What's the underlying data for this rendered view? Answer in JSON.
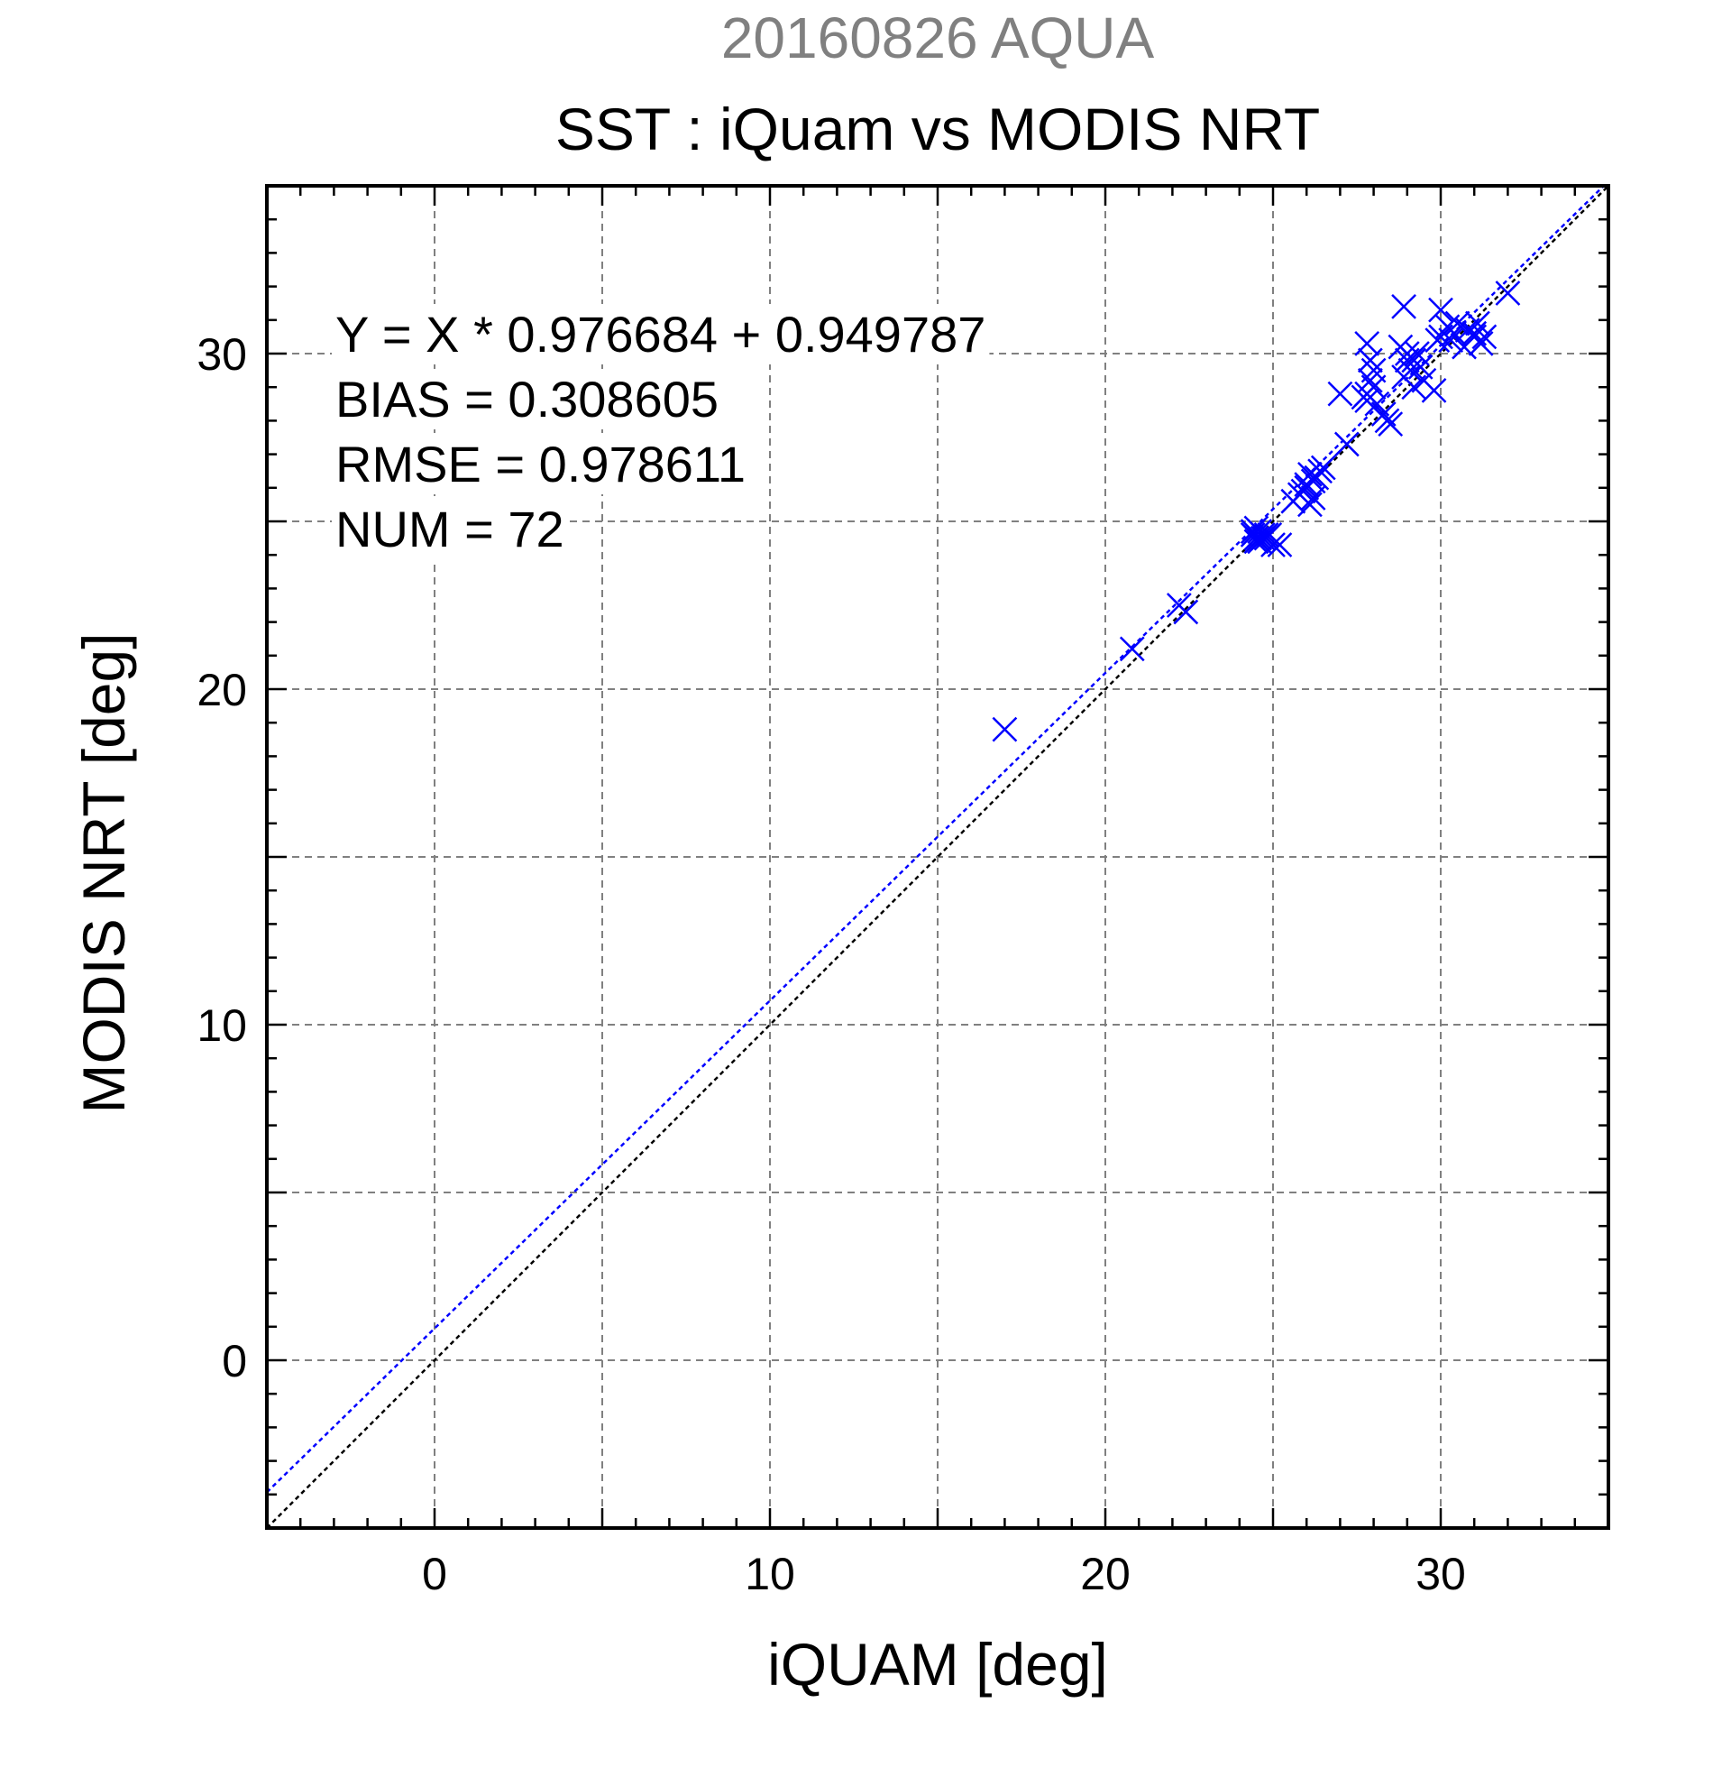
{
  "chart_data": {
    "type": "scatter",
    "title": "SST : iQuam vs MODIS NRT",
    "subtitle": "20160826 AQUA",
    "xlabel": "iQUAM [deg]",
    "ylabel": "MODIS NRT [deg]",
    "xlim": [
      -5,
      35
    ],
    "ylim": [
      -5,
      35
    ],
    "x_ticks": [
      0,
      10,
      20,
      30
    ],
    "y_ticks": [
      0,
      10,
      20,
      30
    ],
    "grid": true,
    "annotations": [
      "Y = X * 0.976684 + 0.949787",
      "BIAS = 0.308605",
      "RMSE = 0.978611",
      "NUM = 72"
    ],
    "fit_line": {
      "slope": 0.976684,
      "intercept": 0.949787,
      "color": "#0000ff"
    },
    "identity_line": {
      "slope": 1,
      "intercept": 0,
      "color": "#000000"
    },
    "marker_color": "#0000ff",
    "marker": "x",
    "series": [
      {
        "x": [
          17.0,
          20.8,
          22.2,
          22.4,
          24.4,
          24.5,
          24.6,
          24.7,
          24.8,
          24.5,
          24.6,
          24.7,
          24.4,
          24.9,
          25.0,
          24.6,
          24.8,
          25.2,
          24.5,
          25.6,
          25.8,
          26.0,
          26.1,
          26.2,
          26.3,
          26.4,
          25.9,
          26.0,
          26.2,
          26.1,
          26.5,
          27.0,
          27.2,
          27.8,
          27.9,
          28.0,
          27.8,
          28.1,
          27.9,
          27.8,
          28.0,
          27.7,
          28.4,
          28.5,
          28.3,
          28.8,
          28.9,
          29.0,
          29.1,
          29.2,
          29.3,
          29.4,
          29.5,
          29.2,
          28.9,
          29.0,
          29.8,
          30.0,
          30.0,
          30.2,
          30.4,
          30.5,
          30.3,
          30.7,
          30.8,
          31.0,
          31.1,
          31.2,
          31.0,
          31.3,
          32.0,
          29.9
        ],
        "y": [
          18.8,
          21.2,
          22.5,
          22.3,
          24.6,
          24.5,
          24.7,
          24.6,
          24.5,
          24.8,
          24.4,
          24.5,
          24.7,
          24.6,
          24.3,
          24.5,
          24.6,
          24.3,
          24.4,
          25.6,
          25.8,
          26.0,
          25.5,
          26.2,
          26.3,
          26.5,
          25.9,
          26.1,
          25.7,
          26.4,
          26.6,
          28.8,
          27.3,
          30.3,
          29.8,
          29.5,
          28.8,
          28.5,
          29.2,
          28.6,
          29.0,
          28.7,
          28.0,
          27.9,
          28.2,
          30.2,
          31.4,
          29.8,
          29.5,
          29.0,
          30.0,
          29.6,
          29.2,
          29.8,
          29.3,
          30.0,
          28.9,
          31.3,
          30.5,
          30.8,
          30.6,
          30.9,
          30.4,
          30.2,
          30.7,
          30.5,
          30.9,
          30.3,
          30.6,
          30.5,
          31.8,
          30.4
        ]
      }
    ]
  }
}
